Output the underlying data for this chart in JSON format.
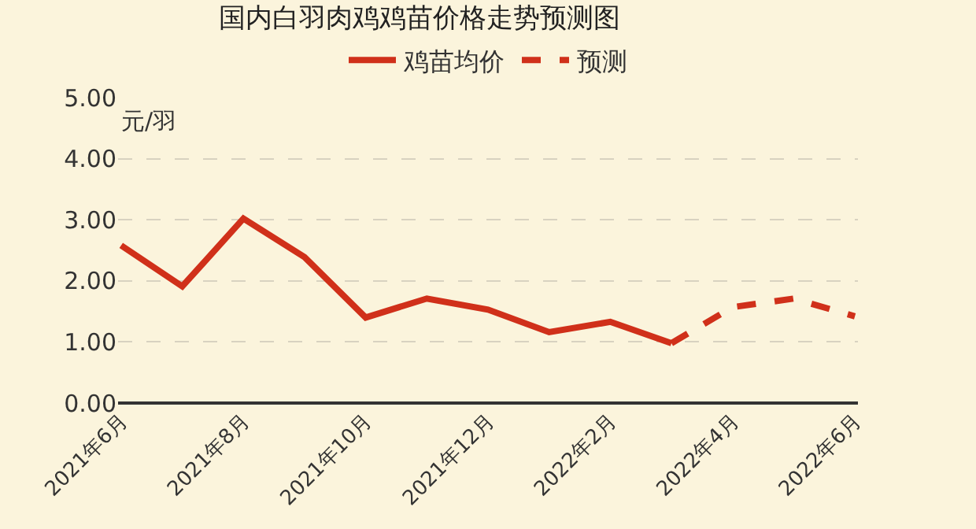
{
  "chart_data": {
    "type": "line",
    "title": "国内白羽肉鸡鸡苗价格走势预测图",
    "ylabel": "元/羽",
    "categories": [
      "2021年6月",
      null,
      "2021年8月",
      null,
      "2021年10月",
      null,
      "2021年12月",
      null,
      "2022年2月",
      null,
      "2022年4月",
      null,
      "2022年6月"
    ],
    "series": [
      {
        "name": "鸡苗均价",
        "color": "#d0301a",
        "line_style": "solid",
        "values": [
          2.58,
          1.91,
          3.02,
          2.39,
          1.4,
          1.71,
          1.53,
          1.16,
          1.33,
          0.98,
          null,
          null,
          null
        ]
      },
      {
        "name": "预测",
        "color": "#d0301a",
        "line_style": "dashed",
        "values": [
          null,
          null,
          null,
          null,
          null,
          null,
          null,
          null,
          null,
          0.98,
          1.57,
          1.71,
          1.42
        ]
      }
    ],
    "ylim": [
      0,
      5
    ],
    "yticks": [
      {
        "value": 0,
        "label": "0.00"
      },
      {
        "value": 1,
        "label": "1.00"
      },
      {
        "value": 2,
        "label": "2.00"
      },
      {
        "value": 3,
        "label": "3.00"
      },
      {
        "value": 4,
        "label": "4.00"
      },
      {
        "value": 5,
        "label": "5.00"
      }
    ],
    "grid": "y",
    "legend": "top",
    "marker": "none"
  }
}
